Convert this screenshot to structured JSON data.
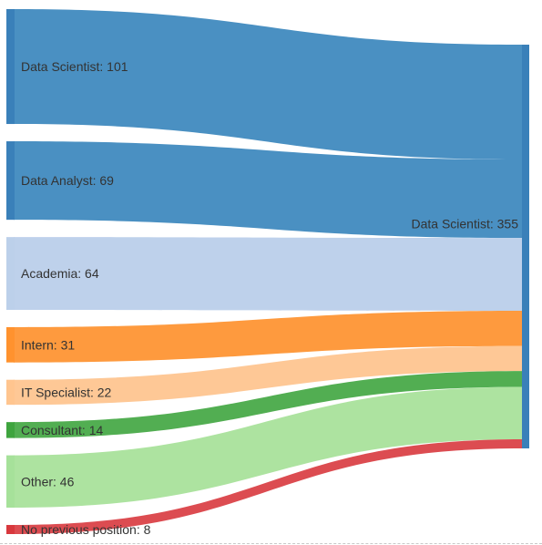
{
  "chart_data": {
    "type": "sankey",
    "target": {
      "name": "Data Scientist",
      "value": 355,
      "label": "Data Scientist: 355",
      "color": "#3a80b9"
    },
    "sources": [
      {
        "name": "Data Scientist",
        "value": 101,
        "label": "Data Scientist: 101",
        "color": "#3a80b9",
        "link_color": "#4a90c2"
      },
      {
        "name": "Data Analyst",
        "value": 69,
        "label": "Data Analyst: 69",
        "color": "#3a80b9",
        "link_color": "#4a90c2"
      },
      {
        "name": "Academia",
        "value": 64,
        "label": "Academia: 64",
        "color": "#bcd0ea",
        "link_color": "#bed1eb"
      },
      {
        "name": "Intern",
        "value": 31,
        "label": "Intern: 31",
        "color": "#ff922e",
        "link_color": "#fe9a3e"
      },
      {
        "name": "IT Specialist",
        "value": 22,
        "label": "IT Specialist: 22",
        "color": "#ffc58f",
        "link_color": "#fec896"
      },
      {
        "name": "Consultant",
        "value": 14,
        "label": "Consultant: 14",
        "color": "#3ea43e",
        "link_color": "#52ae52"
      },
      {
        "name": "Other",
        "value": 46,
        "label": "Other: 46",
        "color": "#a6e19a",
        "link_color": "#ade3a0"
      },
      {
        "name": "No previous position",
        "value": 8,
        "label": "No previous position: 8",
        "color": "#d8383d",
        "link_color": "#dc4c51"
      }
    ]
  }
}
